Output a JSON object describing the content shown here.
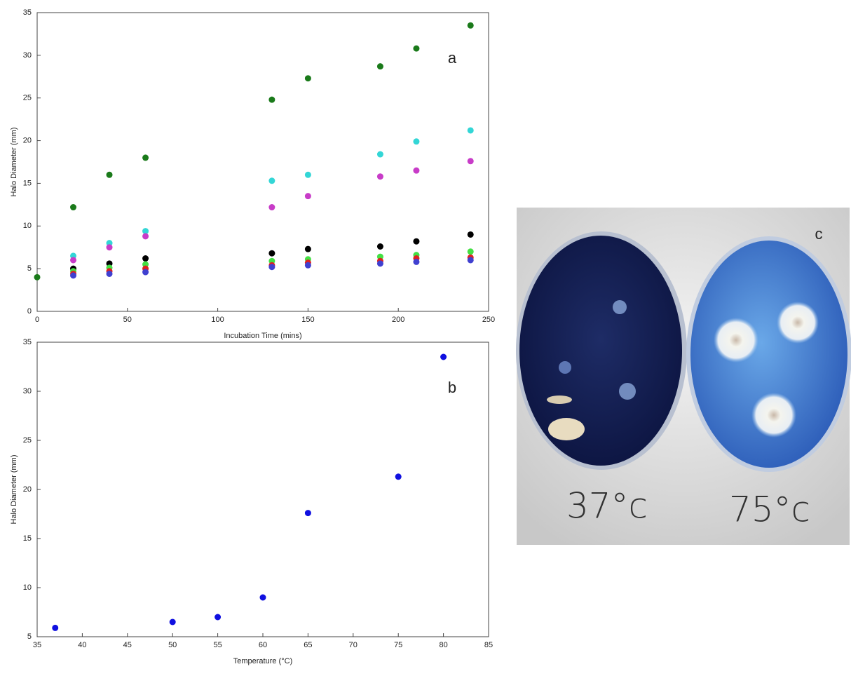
{
  "chart_data": [
    {
      "type": "scatter",
      "annotation": "a",
      "xlabel": "Incubation Time (mins)",
      "ylabel": "Halo Diameter (mm)",
      "xlim": [
        0,
        250
      ],
      "xticks": [
        0,
        50,
        100,
        150,
        200,
        250
      ],
      "ylim": [
        0,
        35
      ],
      "yticks": [
        0,
        5,
        10,
        15,
        20,
        25,
        30,
        35
      ],
      "series": [
        {
          "color": "#1a7a1a",
          "x": [
            0,
            20,
            40,
            60,
            130,
            150,
            190,
            210,
            240
          ],
          "values": [
            4,
            12.2,
            16,
            18,
            24.8,
            27.3,
            28.7,
            30.8,
            33.5
          ]
        },
        {
          "color": "#33d6d6",
          "x": [
            20,
            40,
            60,
            130,
            150,
            190,
            210,
            240
          ],
          "values": [
            6.5,
            8,
            9.4,
            15.3,
            16,
            18.4,
            19.9,
            21.2
          ]
        },
        {
          "color": "#c83cc8",
          "x": [
            20,
            40,
            60,
            130,
            150,
            190,
            210,
            240
          ],
          "values": [
            6,
            7.5,
            8.8,
            12.2,
            13.5,
            15.8,
            16.5,
            17.6
          ]
        },
        {
          "color": "#000000",
          "x": [
            20,
            40,
            60,
            130,
            150,
            190,
            210,
            240
          ],
          "values": [
            5,
            5.6,
            6.2,
            6.8,
            7.3,
            7.6,
            8.2,
            9
          ]
        },
        {
          "color": "#44e044",
          "x": [
            20,
            40,
            60,
            130,
            150,
            190,
            210,
            240
          ],
          "values": [
            4.7,
            5.1,
            5.5,
            5.9,
            6.1,
            6.4,
            6.6,
            7
          ]
        },
        {
          "color": "#e02020",
          "x": [
            20,
            40,
            60,
            130,
            150,
            190,
            210,
            240
          ],
          "values": [
            4.4,
            4.7,
            5,
            5.4,
            5.7,
            5.9,
            6.2,
            6.3
          ]
        },
        {
          "color": "#4040d0",
          "x": [
            20,
            40,
            60,
            130,
            150,
            190,
            210,
            240
          ],
          "values": [
            4.2,
            4.4,
            4.6,
            5.2,
            5.4,
            5.6,
            5.8,
            6
          ]
        }
      ]
    },
    {
      "type": "scatter",
      "annotation": "b",
      "xlabel": "Temperature (°C)",
      "ylabel": "Halo Diameter (mm)",
      "xlim": [
        35,
        85
      ],
      "xticks": [
        35,
        40,
        45,
        50,
        55,
        60,
        65,
        70,
        75,
        80,
        85
      ],
      "ylim": [
        5,
        35
      ],
      "yticks": [
        5,
        10,
        15,
        20,
        25,
        30,
        35
      ],
      "series": [
        {
          "color": "#1010e0",
          "x": [
            37,
            50,
            55,
            60,
            65,
            75,
            80
          ],
          "values": [
            5.9,
            6.5,
            7,
            9,
            17.6,
            21.3,
            33.5
          ]
        }
      ]
    }
  ],
  "photo": {
    "label": "c",
    "captions": [
      "37°c",
      "75°c"
    ]
  }
}
